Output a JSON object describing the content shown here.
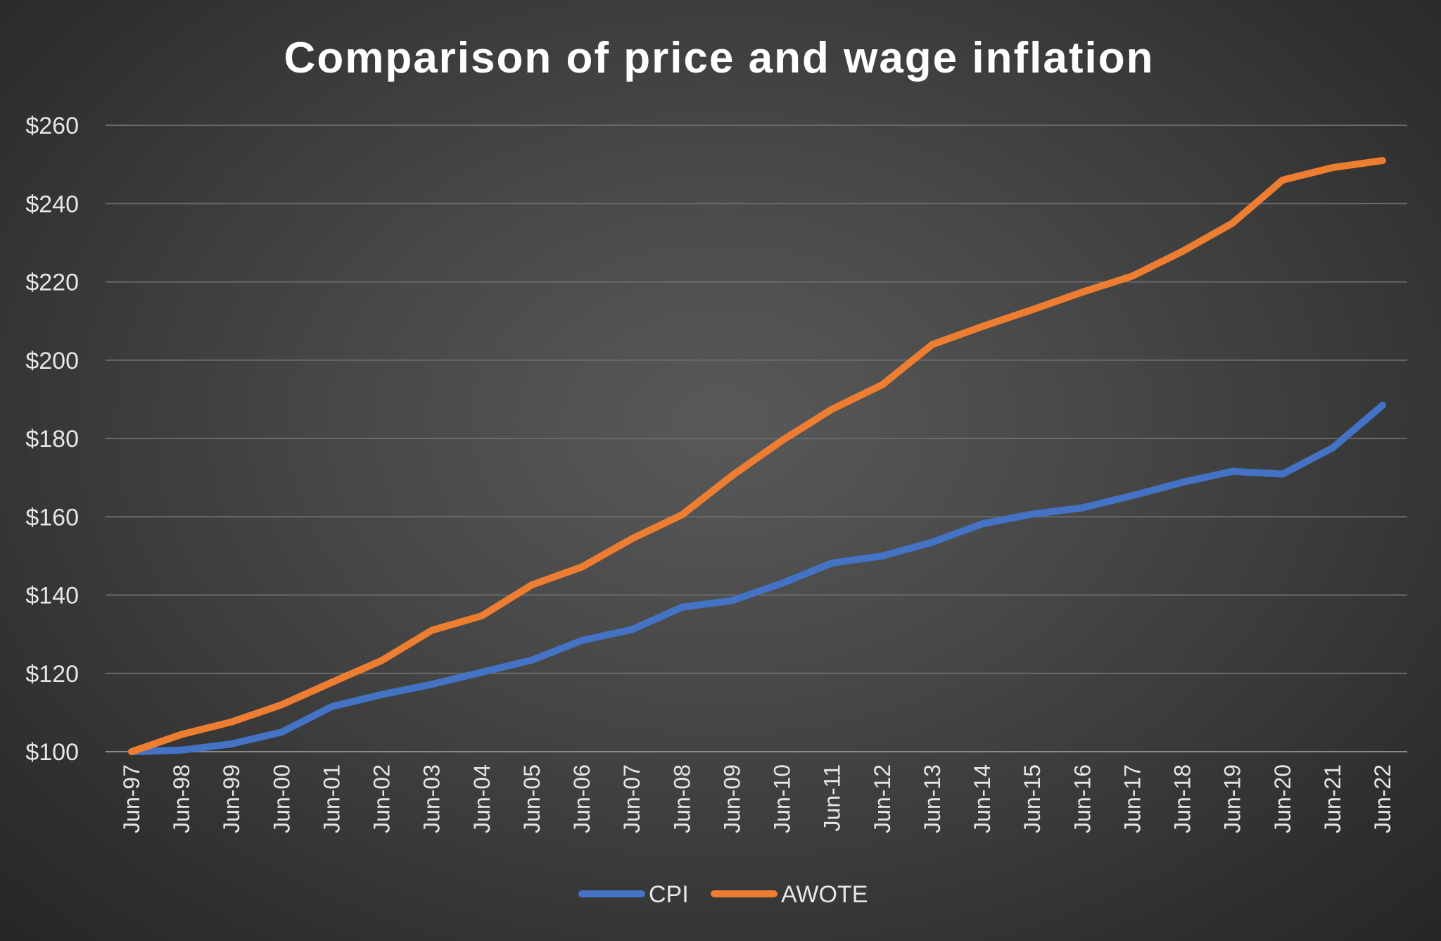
{
  "chart_data": {
    "type": "line",
    "title": "Comparison of price and wage inflation",
    "xlabel": "",
    "ylabel": "",
    "ylim": [
      100,
      260
    ],
    "yticks": [
      {
        "value": 100,
        "label": "$100"
      },
      {
        "value": 120,
        "label": "$120"
      },
      {
        "value": 140,
        "label": "$140"
      },
      {
        "value": 160,
        "label": "$160"
      },
      {
        "value": 180,
        "label": "$180"
      },
      {
        "value": 200,
        "label": "$200"
      },
      {
        "value": 220,
        "label": "$220"
      },
      {
        "value": 240,
        "label": "$240"
      },
      {
        "value": 260,
        "label": "$260"
      }
    ],
    "grid": true,
    "legend_position": "bottom",
    "categories": [
      "Jun-97",
      "Jun-98",
      "Jun-99",
      "Jun-00",
      "Jun-01",
      "Jun-02",
      "Jun-03",
      "Jun-04",
      "Jun-05",
      "Jun-06",
      "Jun-07",
      "Jun-08",
      "Jun-09",
      "Jun-10",
      "Jun-11",
      "Jun-12",
      "Jun-13",
      "Jun-14",
      "Jun-15",
      "Jun-16",
      "Jun-17",
      "Jun-18",
      "Jun-19",
      "Jun-20",
      "Jun-21",
      "Jun-22"
    ],
    "series": [
      {
        "name": "CPI",
        "color": "#4472c4",
        "values": [
          100,
          100.4,
          102,
          105,
          111.5,
          114.6,
          117.2,
          120.3,
          123.4,
          128.4,
          131.2,
          136.9,
          138.6,
          143,
          148.2,
          150,
          153.5,
          158.2,
          160.7,
          162.3,
          165.4,
          168.8,
          171.6,
          170.9,
          177.6,
          188.5
        ]
      },
      {
        "name": "AWOTE",
        "color": "#ed7d31",
        "values": [
          100,
          104.4,
          107.6,
          112,
          117.7,
          123.3,
          131,
          134.7,
          142.6,
          147.2,
          154.4,
          160.5,
          170.5,
          179.5,
          187.5,
          193.7,
          204,
          208.6,
          212.9,
          217.4,
          221.5,
          227.8,
          235,
          246,
          249.2,
          251
        ]
      }
    ]
  }
}
